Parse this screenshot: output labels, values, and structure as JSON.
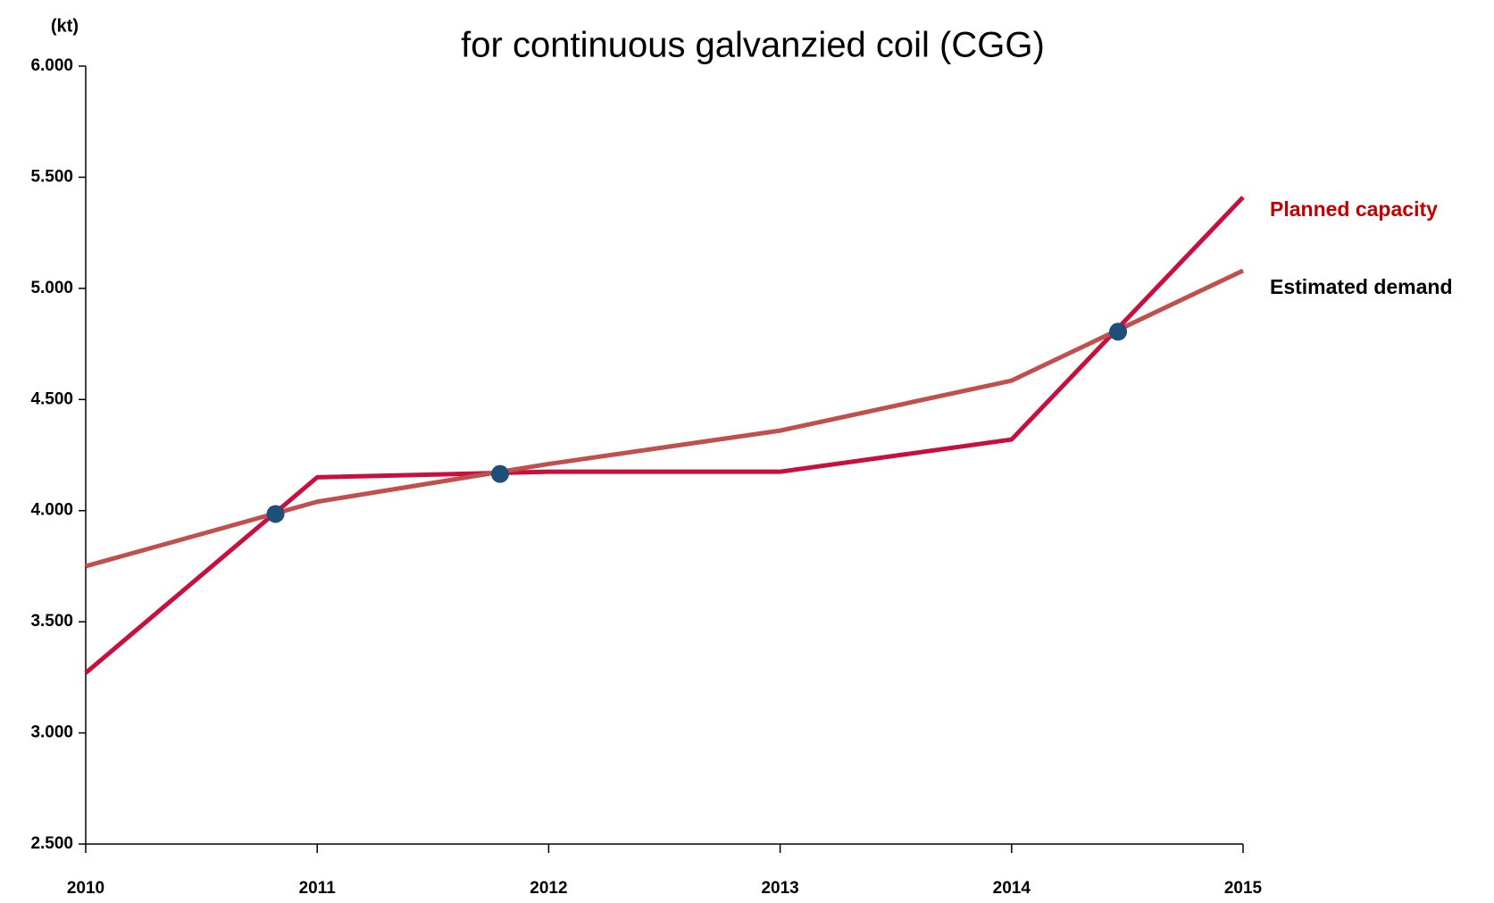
{
  "chart_data": {
    "type": "line",
    "title": "for continuous galvanzied coil (CGG)",
    "y_unit": "(kt)",
    "xlim": [
      2010,
      2015
    ],
    "xticks": [
      2010,
      2011,
      2012,
      2013,
      2014,
      2015
    ],
    "ylim": [
      2500,
      6000
    ],
    "yticks": [
      {
        "value": 2500,
        "label": "2.500"
      },
      {
        "value": 3000,
        "label": "3.000"
      },
      {
        "value": 3500,
        "label": "3.500"
      },
      {
        "value": 4000,
        "label": "4.000"
      },
      {
        "value": 4500,
        "label": "4.500"
      },
      {
        "value": 5000,
        "label": "5.000"
      },
      {
        "value": 5500,
        "label": "5.500"
      },
      {
        "value": 6000,
        "label": "6.000"
      }
    ],
    "grid": false,
    "x": [
      2010,
      2011,
      2012,
      2013,
      2014,
      2015
    ],
    "series": [
      {
        "name": "Planned capacity",
        "color": "#c8103e",
        "label_color": "#c00000",
        "values": [
          3270,
          4150,
          4175,
          4175,
          4320,
          5410
        ]
      },
      {
        "name": "Estimated demand",
        "color": "#c0504d",
        "label_color": "#000000",
        "values": [
          3750,
          4040,
          4210,
          4360,
          4585,
          5080
        ]
      }
    ],
    "markers": {
      "color": "#1f4e79",
      "x": [
        2010.82,
        2011.79,
        2014.46
      ],
      "values": [
        3985,
        4165,
        4805
      ]
    }
  }
}
